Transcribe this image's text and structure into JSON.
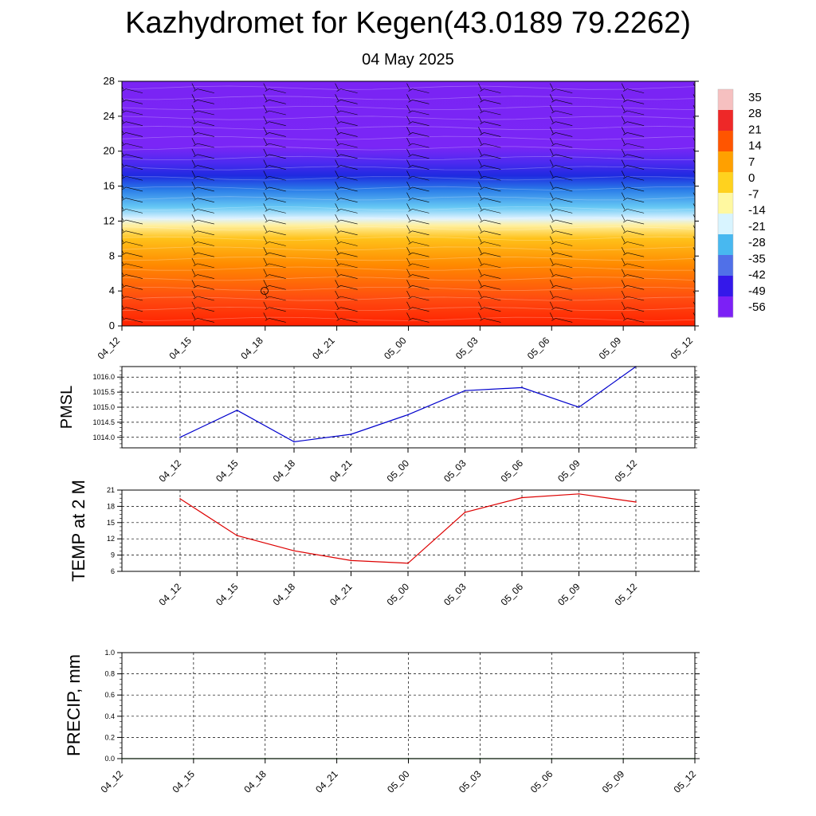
{
  "page": {
    "title": "Kazhydromet for Kegen(43.0189 79.2262)",
    "date": "04 May 2025"
  },
  "chart_data": [
    {
      "type": "heatmap",
      "name": "temperature-profile",
      "x_labels": [
        "04_12",
        "04_15",
        "04_18",
        "04_21",
        "05_00",
        "05_03",
        "05_06",
        "05_09",
        "05_12"
      ],
      "y_ticks": [
        0,
        4,
        8,
        12,
        16,
        20,
        24,
        28
      ],
      "ylim": [
        0,
        28
      ],
      "colorbar": {
        "labels": [
          "35",
          "28",
          "21",
          "14",
          "7",
          "0",
          "-7",
          "-14",
          "-21",
          "-28",
          "-35",
          "-42",
          "-49",
          "-56"
        ],
        "colors": [
          "#f6c0c0",
          "#ee2828",
          "#ff5500",
          "#ffa000",
          "#ffd21e",
          "#fff8a0",
          "#d8f4ff",
          "#48b8f0",
          "#5070e8",
          "#3418ea",
          "#7c20f6"
        ]
      },
      "color_stops": [
        {
          "h": 0,
          "color": "#ff2000"
        },
        {
          "h": 3,
          "color": "#ff4a10"
        },
        {
          "h": 7,
          "color": "#ff8a00"
        },
        {
          "h": 10,
          "color": "#ffc21a"
        },
        {
          "h": 11.5,
          "color": "#fff0a0"
        },
        {
          "h": 12.3,
          "color": "#ddf2ff"
        },
        {
          "h": 13.6,
          "color": "#66c8f4"
        },
        {
          "h": 15.6,
          "color": "#2a7ce8"
        },
        {
          "h": 17.2,
          "color": "#1e2ae0"
        },
        {
          "h": 18.6,
          "color": "#4a2af0"
        },
        {
          "h": 20.5,
          "color": "#7a26f6"
        },
        {
          "h": 28,
          "color": "#7a24f4"
        }
      ]
    },
    {
      "type": "line",
      "name": "pmsl",
      "ylabel": "PMSL",
      "categories": [
        "04_12",
        "04_15",
        "04_18",
        "04_21",
        "05_00",
        "05_03",
        "05_06",
        "05_09",
        "05_12"
      ],
      "values": [
        1014.0,
        1014.9,
        1013.85,
        1014.1,
        1014.75,
        1015.55,
        1015.65,
        1015.0,
        1016.35
      ],
      "yticks": [
        "1014.0",
        "1014.5",
        "1015.0",
        "1015.5",
        "1016.0"
      ],
      "ylim": [
        1013.65,
        1016.35
      ],
      "color": "#0000cc"
    },
    {
      "type": "line",
      "name": "temp-2m",
      "ylabel": "TEMP at 2 M",
      "categories": [
        "04_12",
        "04_15",
        "04_18",
        "04_21",
        "05_00",
        "05_03",
        "05_06",
        "05_09",
        "05_12"
      ],
      "values": [
        19.4,
        12.6,
        9.8,
        8.0,
        7.5,
        16.9,
        19.6,
        20.3,
        18.8
      ],
      "yticks": [
        "6",
        "9",
        "12",
        "15",
        "18",
        "21"
      ],
      "ylim": [
        6,
        21
      ],
      "color": "#dd0000"
    },
    {
      "type": "line",
      "name": "precip",
      "ylabel": "PRECIP, mm",
      "categories": [
        "04_12",
        "04_15",
        "04_18",
        "04_21",
        "05_00",
        "05_03",
        "05_06",
        "05_09",
        "05_12"
      ],
      "values": [
        0,
        0,
        0,
        0,
        0,
        0,
        0,
        0,
        0
      ],
      "yticks": [
        "0.0",
        "0.2",
        "0.4",
        "0.6",
        "0.8",
        "1.0"
      ],
      "ylim": [
        0,
        1
      ],
      "color": "#006600"
    }
  ]
}
